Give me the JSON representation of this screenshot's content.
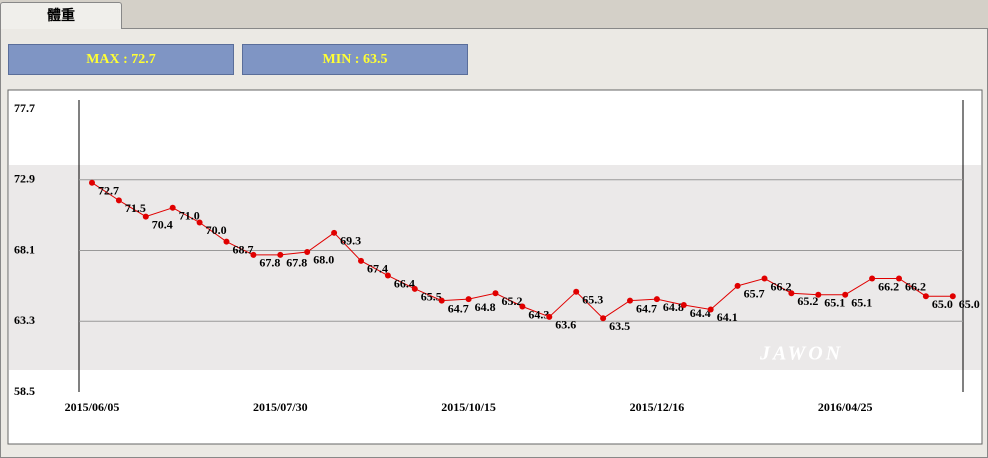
{
  "tab": "體重",
  "max_label": "MAX  : 72.7",
  "min_label": "MIN  : 63.5",
  "chart_data": {
    "type": "line",
    "watermark": "JAWON",
    "categories": [
      "2015/06/05",
      null,
      null,
      null,
      null,
      null,
      null,
      "2015/07/30",
      null,
      null,
      null,
      null,
      null,
      null,
      "2015/10/15",
      null,
      null,
      null,
      null,
      null,
      null,
      "2015/12/16",
      null,
      null,
      null,
      null,
      null,
      null,
      "2016/04/25",
      null,
      null,
      null,
      null
    ],
    "series": [
      {
        "color": "#e00000",
        "values": [
          72.7,
          71.5,
          70.4,
          71.0,
          70.0,
          68.7,
          67.8,
          67.8,
          68.0,
          69.3,
          67.4,
          66.4,
          65.5,
          64.7,
          64.8,
          65.2,
          64.3,
          63.6,
          65.3,
          63.5,
          64.7,
          64.8,
          64.4,
          64.1,
          65.7,
          66.2,
          65.2,
          65.1,
          65.1,
          66.2,
          66.2,
          65.0,
          65.0
        ],
        "value_labels": [
          "72.7",
          "71.5",
          "70.4",
          "71.0",
          "70.0",
          "68.7",
          "67.8",
          "67.8",
          "68.0",
          "69.3",
          "67.4",
          "66.4",
          "65.5",
          "64.7",
          "64.8",
          "65.2",
          "64.3",
          "63.6",
          "65.3",
          "63.5",
          "64.7",
          "64.8",
          "64.4",
          "64.1",
          "65.7",
          "66.2",
          "65.2",
          "65.1",
          "65.1",
          "66.2",
          "66.2",
          "65.0",
          "65.0"
        ]
      }
    ],
    "ylim": [
      58.5,
      77.7
    ],
    "yticks": [
      58.5,
      63.3,
      68.1,
      72.9,
      77.7
    ],
    "grid": true
  }
}
